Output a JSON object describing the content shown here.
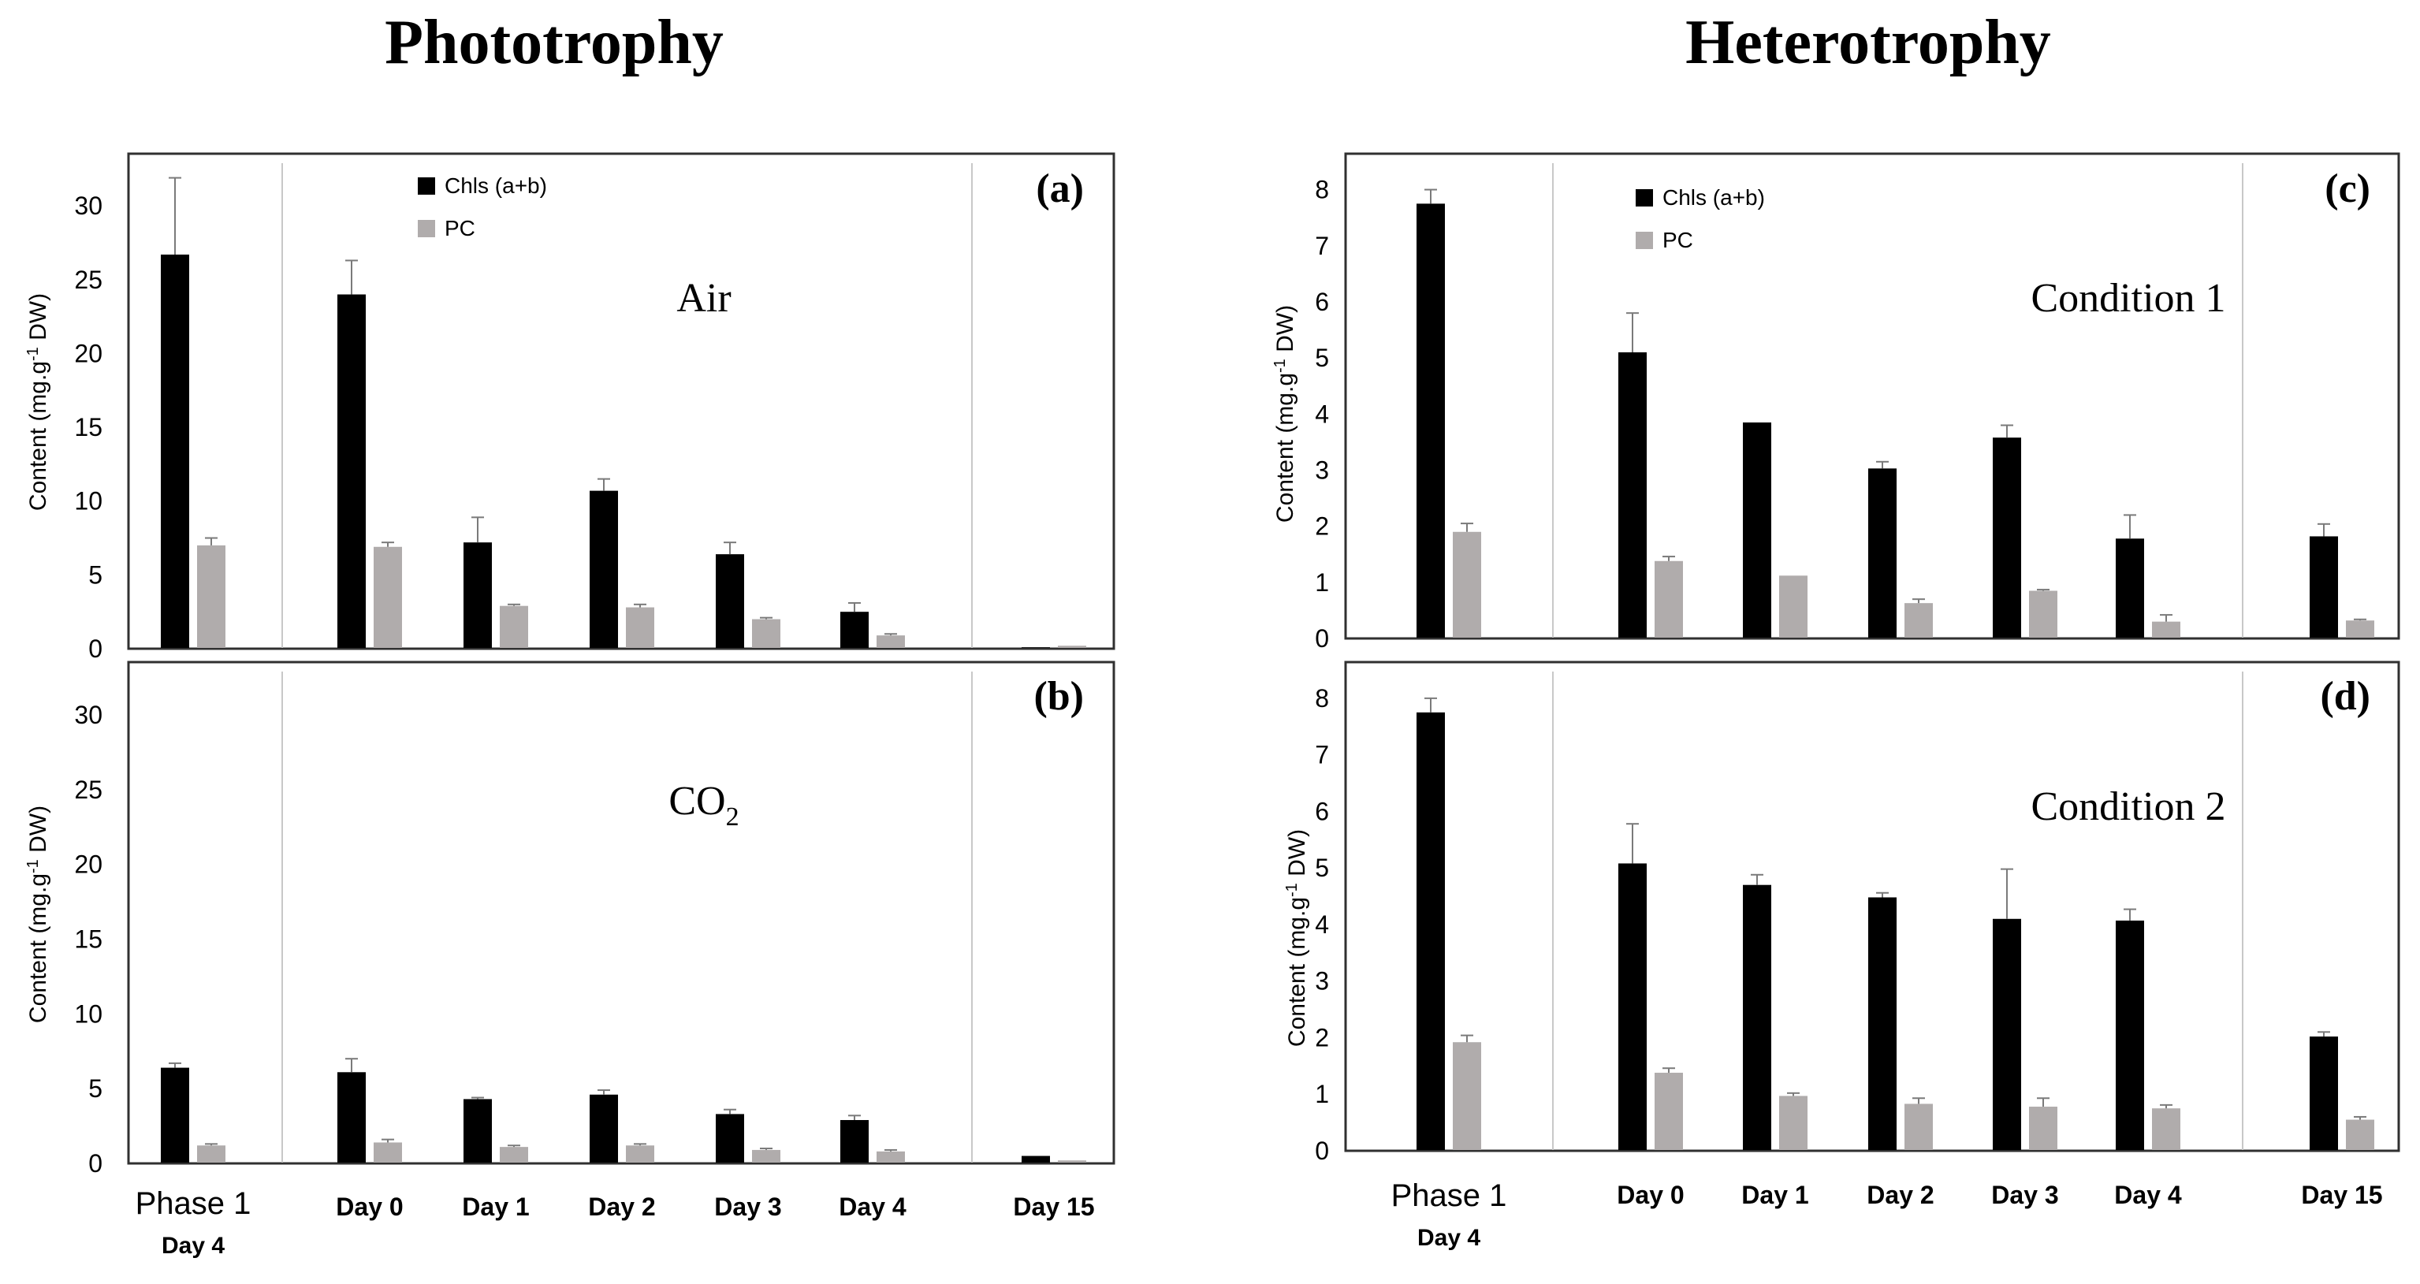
{
  "colors": {
    "chls": "#000000",
    "pc": "#b0acac",
    "frame": "#303030",
    "divider": "#c8c8c8",
    "err": "#7a7a7a"
  },
  "headings": {
    "phototrophy": "Phototrophy",
    "heterotrophy": "Heterotrophy"
  },
  "shared": {
    "ylabel_prefix": "Content (mg.g",
    "ylabel_sup": "-1",
    "ylabel_suffix": " DW)",
    "legend": {
      "chls": "Chls (a+b)",
      "pc": "PC"
    },
    "left_xlabels": {
      "phase1": "Phase 1",
      "phase1_sub": "Day 4",
      "days": [
        "Day 0",
        "Day 1",
        "Day 2",
        "Day 3",
        "Day 4",
        "Day 15"
      ]
    },
    "right_xlabels": {
      "phase1": "Phase 1",
      "phase1_sub": "Day 4",
      "days": [
        "Day 0",
        "Day 1",
        "Day 2",
        "Day 3",
        "Day 4",
        "Day 15"
      ]
    }
  },
  "chart_data": [
    {
      "id": "a",
      "type": "bar",
      "panel_label": "(a)",
      "condition": "Air",
      "condition_sub": "",
      "categories": [
        "Phase 1 Day 4",
        "Day 0",
        "Day 1",
        "Day 2",
        "Day 3",
        "Day 4",
        "Day 15"
      ],
      "ylim": [
        0,
        33
      ],
      "yticks": [
        0,
        5,
        10,
        15,
        20,
        25,
        30
      ],
      "show_legend": true,
      "series": [
        {
          "name": "Chls (a+b)",
          "values": [
            26.7,
            24.0,
            7.2,
            10.7,
            6.4,
            2.5,
            0.1
          ],
          "errors": [
            5.2,
            2.3,
            1.7,
            0.8,
            0.8,
            0.6,
            0
          ]
        },
        {
          "name": "PC",
          "values": [
            7.0,
            6.9,
            2.9,
            2.8,
            2.0,
            0.9,
            0.2
          ],
          "errors": [
            0.5,
            0.3,
            0.1,
            0.2,
            0.1,
            0.1,
            0
          ]
        }
      ]
    },
    {
      "id": "b",
      "type": "bar",
      "panel_label": "(b)",
      "condition": "CO",
      "condition_sub": "2",
      "categories": [
        "Phase 1 Day 4",
        "Day 0",
        "Day 1",
        "Day 2",
        "Day 3",
        "Day 4",
        "Day 15"
      ],
      "ylim": [
        0,
        33
      ],
      "yticks": [
        0,
        5,
        10,
        15,
        20,
        25,
        30
      ],
      "show_legend": false,
      "series": [
        {
          "name": "Chls (a+b)",
          "values": [
            6.4,
            6.1,
            4.3,
            4.6,
            3.3,
            2.9,
            0.5
          ],
          "errors": [
            0.3,
            0.9,
            0.1,
            0.3,
            0.3,
            0.3,
            0
          ]
        },
        {
          "name": "PC",
          "values": [
            1.2,
            1.4,
            1.1,
            1.2,
            0.9,
            0.8,
            0.2
          ],
          "errors": [
            0.1,
            0.2,
            0.1,
            0.1,
            0.1,
            0.1,
            0
          ]
        }
      ]
    },
    {
      "id": "c",
      "type": "bar",
      "panel_label": "(c)",
      "condition": "Condition 1",
      "condition_sub": "",
      "categories": [
        "Phase 1 Day 4",
        "Day 0",
        "Day 1",
        "Day 2",
        "Day 3",
        "Day 4",
        "Day 15"
      ],
      "ylim": [
        0,
        8.5
      ],
      "yticks": [
        0,
        1,
        2,
        3,
        4,
        5,
        6,
        7,
        8
      ],
      "show_legend": true,
      "series": [
        {
          "name": "Chls (a+b)",
          "values": [
            7.75,
            5.1,
            3.85,
            3.03,
            3.58,
            1.78,
            1.82
          ],
          "errors": [
            0.25,
            0.7,
            0,
            0.12,
            0.22,
            0.42,
            0.22
          ]
        },
        {
          "name": "PC",
          "values": [
            1.9,
            1.38,
            1.12,
            0.63,
            0.85,
            0.3,
            0.32
          ],
          "errors": [
            0.15,
            0.08,
            0,
            0.07,
            0.02,
            0.12,
            0.02
          ]
        }
      ]
    },
    {
      "id": "d",
      "type": "bar",
      "panel_label": "(d)",
      "condition": "Condition 2",
      "condition_sub": "",
      "categories": [
        "Phase 1 Day 4",
        "Day 0",
        "Day 1",
        "Day 2",
        "Day 3",
        "Day 4",
        "Day 15"
      ],
      "ylim": [
        0,
        8.5
      ],
      "yticks": [
        0,
        1,
        2,
        3,
        4,
        5,
        6,
        7,
        8
      ],
      "show_legend": false,
      "series": [
        {
          "name": "Chls (a+b)",
          "values": [
            7.75,
            5.08,
            4.7,
            4.48,
            4.1,
            4.07,
            2.02
          ],
          "errors": [
            0.25,
            0.7,
            0.18,
            0.08,
            0.88,
            0.2,
            0.08
          ]
        },
        {
          "name": "PC",
          "values": [
            1.92,
            1.38,
            0.97,
            0.83,
            0.78,
            0.75,
            0.55
          ],
          "errors": [
            0.12,
            0.08,
            0.05,
            0.1,
            0.15,
            0.06,
            0.05
          ]
        }
      ]
    }
  ]
}
